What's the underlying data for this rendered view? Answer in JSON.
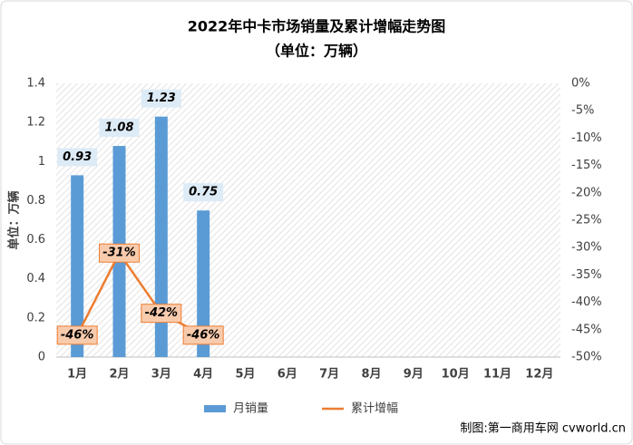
{
  "chart_data": {
    "type": "bar",
    "title": "2022年中卡市场销量及累计增幅走势图",
    "subtitle": "（单位：万辆）",
    "y_label": "单位：万辆",
    "source": "制图:第一商用车网 cvworld.cn",
    "categories": [
      "1月",
      "2月",
      "3月",
      "4月",
      "5月",
      "6月",
      "7月",
      "8月",
      "9月",
      "10月",
      "11月",
      "12月"
    ],
    "series": [
      {
        "name": "月销量",
        "type": "bar",
        "color": "#5b9bd5",
        "values": [
          0.93,
          1.08,
          1.23,
          0.75,
          null,
          null,
          null,
          null,
          null,
          null,
          null,
          null
        ]
      },
      {
        "name": "累计增幅",
        "type": "line",
        "axis": "y2",
        "color": "#ed7d31",
        "values": [
          -46,
          -31,
          -42,
          -46,
          null,
          null,
          null,
          null,
          null,
          null,
          null,
          null
        ],
        "value_labels": [
          "-46%",
          "-31%",
          "-42%",
          "-46%",
          null,
          null,
          null,
          null,
          null,
          null,
          null,
          null
        ]
      }
    ],
    "ylim": [
      0,
      1.4
    ],
    "yticks": [
      0,
      0.2,
      0.4,
      0.6,
      0.8,
      1,
      1.2,
      1.4
    ],
    "y2lim": [
      -50,
      0
    ],
    "y2ticks": [
      {
        "value": 0,
        "label": "0%"
      },
      {
        "value": -5,
        "label": "-5%"
      },
      {
        "value": -10,
        "label": "-10%"
      },
      {
        "value": -15,
        "label": "-15%"
      },
      {
        "value": -20,
        "label": "-20%"
      },
      {
        "value": -25,
        "label": "-25%"
      },
      {
        "value": -30,
        "label": "-30%"
      },
      {
        "value": -35,
        "label": "-35%"
      },
      {
        "value": -40,
        "label": "-40%"
      },
      {
        "value": -45,
        "label": "-45%"
      },
      {
        "value": -50,
        "label": "-50%"
      }
    ],
    "legend": "bottom"
  }
}
